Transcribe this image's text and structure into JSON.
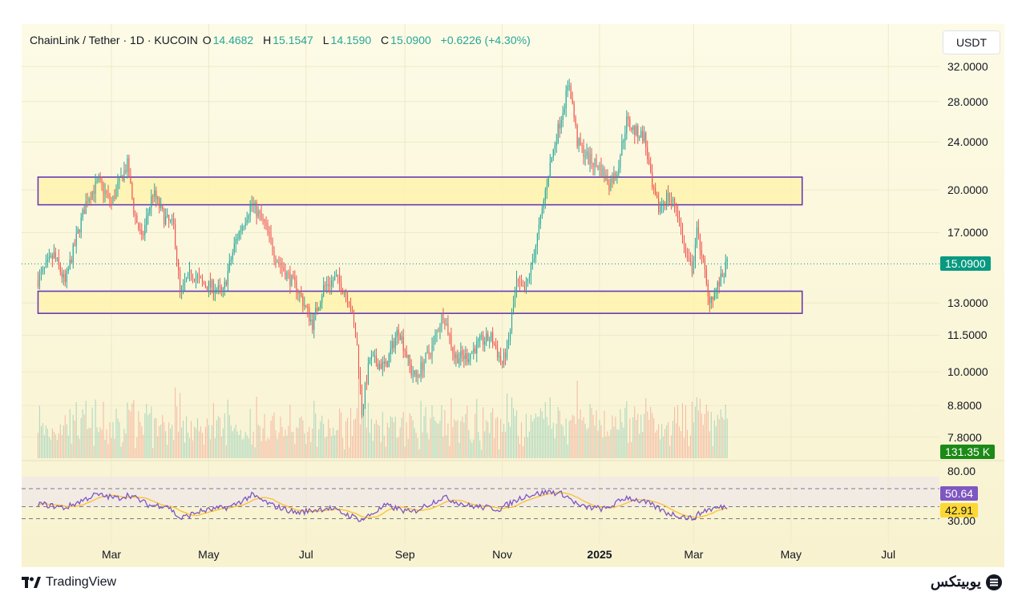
{
  "header": {
    "symbol": "ChainLink / Tether · 1D · KUCOIN",
    "o_label": "O",
    "o_value": "14.4682",
    "h_label": "H",
    "h_value": "15.1547",
    "l_label": "L",
    "l_value": "14.1590",
    "c_label": "C",
    "c_value": "15.0900",
    "change": "+0.6226 (+4.30%)"
  },
  "currency_button": "USDT",
  "branding": {
    "tradingview": "TradingView",
    "site": "یوبیتکس"
  },
  "colors": {
    "up": "#26a69a",
    "down": "#ef5350",
    "zone_border": "#673ab7",
    "zone_fill": "#fff3a8",
    "rsi": "#7e57c2",
    "rsi_ma": "#fbc02d",
    "last_price": "#089981",
    "volume_badge": "#1b8a16"
  },
  "chart_data": {
    "type": "candlestick",
    "scale": "log",
    "y_ticks": [
      "32.0000",
      "28.0000",
      "24.0000",
      "20.0000",
      "17.0000",
      "15.0900",
      "13.0000",
      "11.5000",
      "10.0000",
      "8.8000",
      "7.8000"
    ],
    "x_ticks": [
      "Mar",
      "May",
      "Jul",
      "Sep",
      "Nov",
      "2025",
      "Mar",
      "May",
      "Jul"
    ],
    "x_tick_dates": [
      "2024-03-01",
      "2024-05-01",
      "2024-07-01",
      "2024-09-01",
      "2024-11-01",
      "2025-01-01",
      "2025-03-01",
      "2025-05-01",
      "2025-07-01"
    ],
    "start_date": "2024-01-15",
    "end_date": "2025-03-22",
    "last_price": 15.09,
    "last_price_label": "15.0900",
    "volume_last_label": "131.35 K",
    "zones": [
      {
        "name": "resistance",
        "low": 18.9,
        "high": 21.0,
        "from": "2024-01-15",
        "to": "2025-05-08"
      },
      {
        "name": "support",
        "low": 12.5,
        "high": 13.6,
        "from": "2024-01-15",
        "to": "2025-05-08"
      }
    ],
    "price_path": [
      [
        "2024-01-15",
        14.2
      ],
      [
        "2024-01-25",
        15.6
      ],
      [
        "2024-02-01",
        14.0
      ],
      [
        "2024-02-08",
        16.6
      ],
      [
        "2024-02-15",
        19.4
      ],
      [
        "2024-02-22",
        20.6
      ],
      [
        "2024-03-01",
        19.0
      ],
      [
        "2024-03-06",
        20.6
      ],
      [
        "2024-03-11",
        22.0
      ],
      [
        "2024-03-15",
        18.5
      ],
      [
        "2024-03-20",
        16.5
      ],
      [
        "2024-03-27",
        19.8
      ],
      [
        "2024-04-03",
        18.0
      ],
      [
        "2024-04-09",
        17.4
      ],
      [
        "2024-04-13",
        13.5
      ],
      [
        "2024-04-20",
        14.6
      ],
      [
        "2024-04-27",
        14.0
      ],
      [
        "2024-05-04",
        13.8
      ],
      [
        "2024-05-10",
        13.5
      ],
      [
        "2024-05-18",
        16.5
      ],
      [
        "2024-05-28",
        19.0
      ],
      [
        "2024-06-05",
        17.5
      ],
      [
        "2024-06-12",
        15.5
      ],
      [
        "2024-06-18",
        14.6
      ],
      [
        "2024-06-25",
        13.8
      ],
      [
        "2024-07-05",
        12.0
      ],
      [
        "2024-07-12",
        13.8
      ],
      [
        "2024-07-20",
        14.3
      ],
      [
        "2024-07-28",
        13.2
      ],
      [
        "2024-08-02",
        11.0
      ],
      [
        "2024-08-05",
        8.6
      ],
      [
        "2024-08-10",
        10.5
      ],
      [
        "2024-08-20",
        10.2
      ],
      [
        "2024-08-28",
        11.8
      ],
      [
        "2024-09-05",
        10.0
      ],
      [
        "2024-09-08",
        9.8
      ],
      [
        "2024-09-18",
        11.0
      ],
      [
        "2024-09-25",
        12.5
      ],
      [
        "2024-10-02",
        10.6
      ],
      [
        "2024-10-10",
        10.6
      ],
      [
        "2024-10-18",
        11.2
      ],
      [
        "2024-10-25",
        11.4
      ],
      [
        "2024-11-01",
        10.3
      ],
      [
        "2024-11-05",
        11.2
      ],
      [
        "2024-11-10",
        14.0
      ],
      [
        "2024-11-15",
        13.5
      ],
      [
        "2024-11-20",
        15.2
      ],
      [
        "2024-11-25",
        17.8
      ],
      [
        "2024-12-01",
        22.0
      ],
      [
        "2024-12-08",
        26.5
      ],
      [
        "2024-12-13",
        30.0
      ],
      [
        "2024-12-18",
        24.0
      ],
      [
        "2024-12-25",
        22.5
      ],
      [
        "2025-01-01",
        21.8
      ],
      [
        "2025-01-07",
        20.5
      ],
      [
        "2025-01-12",
        21.5
      ],
      [
        "2025-01-18",
        26.0
      ],
      [
        "2025-01-23",
        25.0
      ],
      [
        "2025-01-29",
        24.5
      ],
      [
        "2025-02-03",
        20.0
      ],
      [
        "2025-02-07",
        18.6
      ],
      [
        "2025-02-12",
        19.5
      ],
      [
        "2025-02-18",
        18.8
      ],
      [
        "2025-02-24",
        15.5
      ],
      [
        "2025-02-28",
        14.8
      ],
      [
        "2025-03-03",
        17.0
      ],
      [
        "2025-03-06",
        15.8
      ],
      [
        "2025-03-10",
        13.2
      ],
      [
        "2025-03-14",
        13.5
      ],
      [
        "2025-03-18",
        14.2
      ],
      [
        "2025-03-22",
        15.09
      ]
    ],
    "rsi": {
      "upper_band": 80,
      "lower_band": 30,
      "upper_label": "80.00",
      "lower_label": "30.00",
      "rsi_label": "50.64",
      "rsi_ma_label": "42.91",
      "path": [
        [
          "2024-01-15",
          55
        ],
        [
          "2024-02-01",
          48
        ],
        [
          "2024-02-20",
          70
        ],
        [
          "2024-03-05",
          64
        ],
        [
          "2024-03-12",
          70
        ],
        [
          "2024-03-25",
          52
        ],
        [
          "2024-04-05",
          52
        ],
        [
          "2024-04-13",
          30
        ],
        [
          "2024-04-25",
          42
        ],
        [
          "2024-05-15",
          50
        ],
        [
          "2024-05-28",
          69
        ],
        [
          "2024-06-10",
          52
        ],
        [
          "2024-06-25",
          40
        ],
        [
          "2024-07-15",
          48
        ],
        [
          "2024-08-05",
          28
        ],
        [
          "2024-08-20",
          52
        ],
        [
          "2024-09-05",
          40
        ],
        [
          "2024-09-25",
          66
        ],
        [
          "2024-10-10",
          52
        ],
        [
          "2024-10-30",
          46
        ],
        [
          "2024-11-15",
          68
        ],
        [
          "2024-12-01",
          75
        ],
        [
          "2024-12-10",
          70
        ],
        [
          "2024-12-20",
          50
        ],
        [
          "2025-01-05",
          46
        ],
        [
          "2025-01-18",
          66
        ],
        [
          "2025-02-01",
          55
        ],
        [
          "2025-02-12",
          40
        ],
        [
          "2025-02-28",
          30
        ],
        [
          "2025-03-08",
          44
        ],
        [
          "2025-03-22",
          50.64
        ]
      ]
    }
  }
}
